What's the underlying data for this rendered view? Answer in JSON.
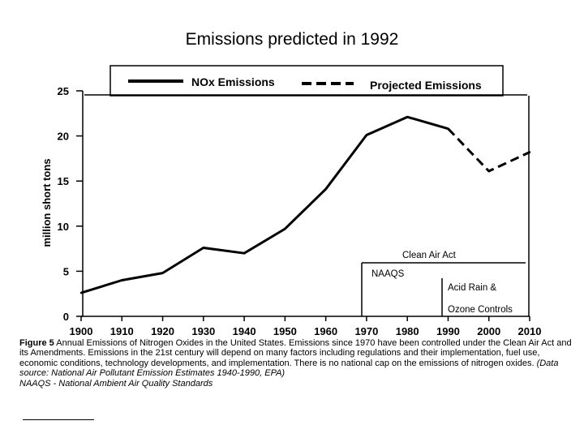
{
  "page": {
    "title": "Emissions predicted in 1992"
  },
  "chart_data": {
    "type": "line",
    "title": "Emissions predicted in 1992",
    "xlabel": "",
    "ylabel": "million short tons",
    "xlim": [
      1900,
      2010
    ],
    "ylim": [
      0,
      25
    ],
    "x_ticks": [
      "1900",
      "1910",
      "1920",
      "1930",
      "1940",
      "1950",
      "1960",
      "1970",
      "1980",
      "1990",
      "2000",
      "2010"
    ],
    "y_ticks": [
      "0",
      "5",
      "10",
      "15",
      "20",
      "25"
    ],
    "legend": {
      "placement": "top",
      "labels": [
        "NOx Emissions",
        "Projected Emissions"
      ]
    },
    "series": [
      {
        "name": "NOx Emissions",
        "style": "solid",
        "x": [
          1900,
          1910,
          1920,
          1930,
          1940,
          1950,
          1960,
          1970,
          1980,
          1990
        ],
        "y": [
          2.6,
          4.0,
          4.8,
          7.6,
          7.0,
          9.7,
          14.1,
          20.1,
          22.1,
          20.8
        ]
      },
      {
        "name": "Projected Emissions",
        "style": "dashed",
        "x": [
          1990,
          2000,
          2010
        ],
        "y": [
          20.8,
          16.1,
          18.2
        ]
      }
    ],
    "annotations": [
      {
        "text": "Clean Air Act",
        "x": 1970
      },
      {
        "text": "NAAQS",
        "x": 1970
      },
      {
        "text": "Acid Rain &",
        "x": 1990
      },
      {
        "text": "Ozone Controls",
        "x": 1990
      }
    ]
  },
  "caption": {
    "figure_label": "Figure 5",
    "main_text": "Annual Emissions of Nitrogen Oxides in the United States. Emissions since 1970 have been controlled under the Clean Air Act and its Amendments. Emissions in the 21st century will depend on many factors including regulations and their implementation, fuel use, economic conditions, technology developments, and implementation. There is no national cap on the emissions of nitrogen oxides.",
    "source_text": "(Data source: National Air Pollutant Emission Estimates 1940-1990, EPA)",
    "naaqs_text": "NAAQS - National Ambient Air Quality Standards"
  }
}
